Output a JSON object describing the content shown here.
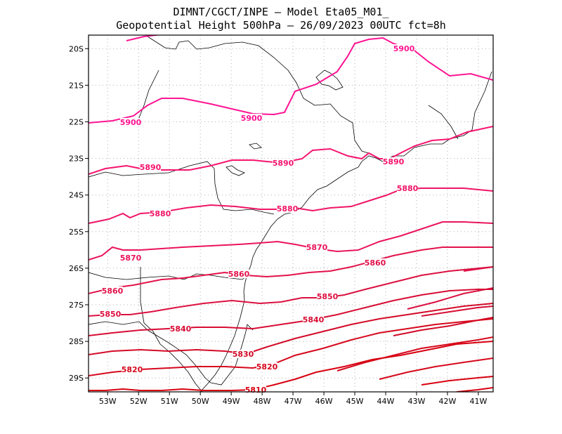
{
  "title": {
    "line1": "DIMNT/CGCT/INPE –  Model Eta05_M01_",
    "line2": "Geopotential Height 500hPa –  26/09/2023 00UTC fct=8h"
  },
  "axes": {
    "lon_ticks": [
      "53W",
      "52W",
      "51W",
      "50W",
      "49W",
      "48W",
      "47W",
      "46W",
      "45W",
      "44W",
      "43W",
      "42W",
      "41W"
    ],
    "lat_ticks": [
      "20S",
      "21S",
      "22S",
      "23S",
      "24S",
      "25S",
      "26S",
      "27S",
      "28S",
      "29S"
    ],
    "grid": "dotted"
  },
  "map_data": {
    "field": "Geopotential Height 500hPa",
    "contours": [
      {
        "value": 5900,
        "color": "#ff1493",
        "labels": [
          "5900",
          "5900",
          "5900"
        ]
      },
      {
        "value": 5890,
        "color": "#f7146f",
        "labels": [
          "5890",
          "5890",
          "5890"
        ]
      },
      {
        "value": 5880,
        "color": "#f01466",
        "labels": [
          "5880",
          "5880",
          "5880"
        ]
      },
      {
        "value": 5870,
        "color": "#ea145a",
        "labels": [
          "5870",
          "5870"
        ]
      },
      {
        "value": 5860,
        "color": "#e3124a",
        "labels": [
          "5860",
          "5860",
          "5860"
        ]
      },
      {
        "value": 5850,
        "color": "#dc1040",
        "labels": [
          "5850",
          "5850"
        ]
      },
      {
        "value": 5840,
        "color": "#d80c34",
        "labels": [
          "5840",
          "5840"
        ]
      },
      {
        "value": 5830,
        "color": "#d30a28",
        "labels": [
          "5830"
        ]
      },
      {
        "value": 5820,
        "color": "#d6081c",
        "labels": [
          "5820",
          "5820"
        ]
      },
      {
        "value": 5810,
        "color": "#d80010",
        "labels": [
          "5810"
        ]
      }
    ]
  }
}
